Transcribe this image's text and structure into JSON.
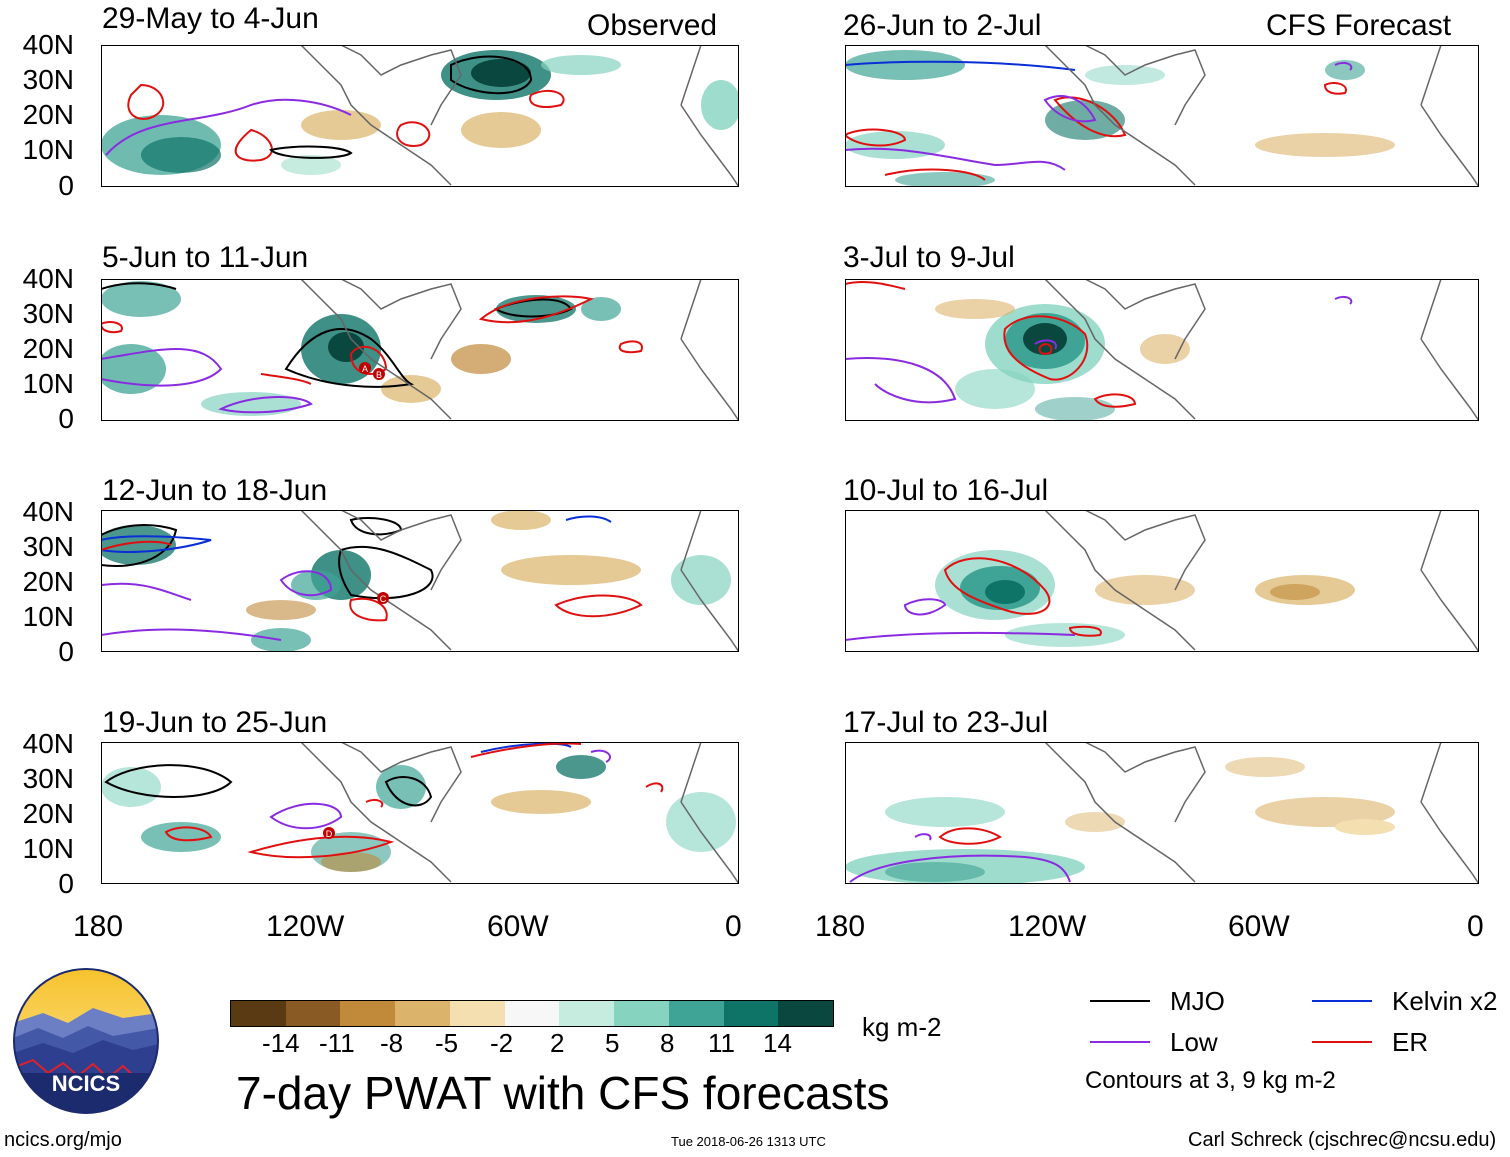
{
  "left_column": {
    "label": "Observed",
    "panels": [
      {
        "period": "29-May to 4-Jun"
      },
      {
        "period": "5-Jun to 11-Jun",
        "storm_markers": [
          "A",
          "B"
        ]
      },
      {
        "period": "12-Jun to 18-Jun",
        "storm_markers": [
          "C"
        ]
      },
      {
        "period": "19-Jun to 25-Jun",
        "storm_markers": [
          "D"
        ]
      }
    ]
  },
  "right_column": {
    "label": "CFS Forecast",
    "panels": [
      {
        "period": "26-Jun to 2-Jul"
      },
      {
        "period": "3-Jul to 9-Jul"
      },
      {
        "period": "10-Jul to 16-Jul"
      },
      {
        "period": "17-Jul to 23-Jul"
      }
    ]
  },
  "axes": {
    "y_ticks": [
      "40N",
      "30N",
      "20N",
      "10N",
      "0"
    ],
    "x_ticks": [
      "180",
      "120W",
      "60W",
      "0"
    ]
  },
  "colorbar": {
    "colors": [
      "#5a3a12",
      "#8a5a24",
      "#c08a3a",
      "#dcb36a",
      "#f3dfb0",
      "#f7f7f7",
      "#c6ece0",
      "#86d3c0",
      "#3fa495",
      "#0f7468",
      "#0a473e"
    ],
    "labels": [
      "-14",
      "-11",
      "-8",
      "-5",
      "-2",
      "2",
      "5",
      "8",
      "11",
      "14"
    ],
    "units": "kg m-2"
  },
  "title": "7-day PWAT with CFS forecasts",
  "legend": {
    "items": [
      {
        "label": "MJO",
        "color": "#000000"
      },
      {
        "label": "Kelvin x2",
        "color": "#0a2fd6"
      },
      {
        "label": "Low",
        "color": "#8a2be2"
      },
      {
        "label": "ER",
        "color": "#e01010"
      }
    ],
    "note": "Contours at 3, 9 kg m-2"
  },
  "logo": {
    "text": "NCICS"
  },
  "footer": {
    "site": "ncics.org/mjo",
    "timestamp": "Tue 2018-06-26 1313 UTC",
    "author": "Carl Schreck (cjschrec@ncsu.edu)"
  }
}
